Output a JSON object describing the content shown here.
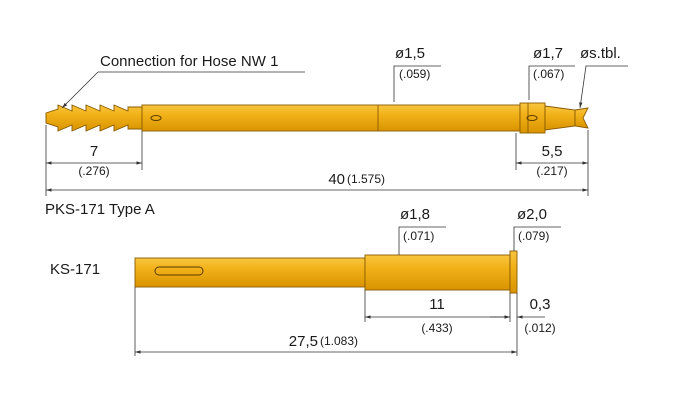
{
  "parts": [
    {
      "label": "PKS-171 Type A",
      "annotation": "Connection for Hose NW 1",
      "dimensions": [
        {
          "value": "ø1,5",
          "inch": "(.059)"
        },
        {
          "value": "ø1,7",
          "inch": "(.067)"
        },
        {
          "value": "øs.tbl."
        },
        {
          "value": "7",
          "inch": "(.276)"
        },
        {
          "value": "5,5",
          "inch": "(.217)"
        },
        {
          "value": "40",
          "inch": "(1.575)"
        }
      ]
    },
    {
      "label": "KS-171",
      "dimensions": [
        {
          "value": "ø1,8",
          "inch": "(.071)"
        },
        {
          "value": "ø2,0",
          "inch": "(.079)"
        },
        {
          "value": "11",
          "inch": "(.433)"
        },
        {
          "value": "0,3",
          "inch": "(.012)"
        },
        {
          "value": "27,5",
          "inch": "(1.083)"
        }
      ]
    }
  ]
}
